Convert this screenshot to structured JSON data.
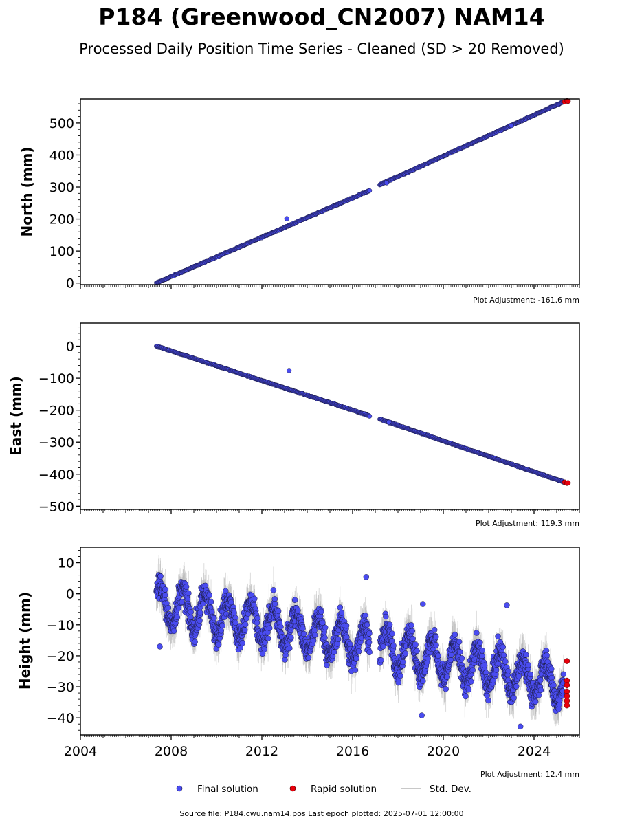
{
  "title": "P184 (Greenwood_CN2007) NAM14",
  "subtitle": "Processed Daily Position Time Series - Cleaned (SD > 20 Removed)",
  "footer": "Source file: P184.cwu.nam14.pos  Last epoch plotted: 2025-07-01 12:00:00",
  "legend": {
    "final_label": "Final solution",
    "rapid_label": "Rapid solution",
    "std_label": "Std. Dev."
  },
  "colors": {
    "final": "#4a4cf0",
    "rapid": "#e8000b",
    "edge": "#1a1a40",
    "std": "#b0b0b0"
  },
  "chart_data": [
    {
      "type": "scatter",
      "ylabel": "North (mm)",
      "adjustment": "Plot Adjustment: -161.6 mm",
      "xlim": [
        2004.0,
        2026.0
      ],
      "ylim": [
        -5,
        575
      ],
      "yticks": [
        0,
        100,
        200,
        300,
        400,
        500
      ],
      "ytick_labels": [
        "0",
        "100",
        "200",
        "300",
        "400",
        "500"
      ],
      "segments": [
        {
          "x0": 2007.35,
          "y0": 0,
          "x1": 2016.75,
          "y1": 289
        },
        {
          "x0": 2017.2,
          "y0": 307,
          "x1": 2025.3,
          "y1": 566
        }
      ],
      "outliers": [
        {
          "x": 2013.1,
          "y": 201
        },
        {
          "x": 2017.5,
          "y": 313
        },
        {
          "x": 2023.0,
          "y": 492
        }
      ],
      "rapid": [
        {
          "x": 2025.35,
          "y": 566
        },
        {
          "x": 2025.45,
          "y": 569
        },
        {
          "x": 2025.5,
          "y": 568
        }
      ]
    },
    {
      "type": "scatter",
      "ylabel": "East (mm)",
      "adjustment": "Plot Adjustment: 119.3 mm",
      "xlim": [
        2004.0,
        2026.0
      ],
      "ylim": [
        -510,
        72
      ],
      "yticks": [
        0,
        -100,
        -200,
        -300,
        -400,
        -500
      ],
      "ytick_labels": [
        "0",
        "−100",
        "−200",
        "−300",
        "−400",
        "−500"
      ],
      "segments": [
        {
          "x0": 2007.35,
          "y0": 0,
          "x1": 2016.75,
          "y1": -217
        },
        {
          "x0": 2017.2,
          "y0": -228,
          "x1": 2025.3,
          "y1": -424
        }
      ],
      "outliers": [
        {
          "x": 2013.2,
          "y": -76
        },
        {
          "x": 2017.6,
          "y": -238
        }
      ],
      "rapid": [
        {
          "x": 2025.35,
          "y": -425
        },
        {
          "x": 2025.45,
          "y": -428
        },
        {
          "x": 2025.5,
          "y": -427
        }
      ]
    },
    {
      "type": "scatter",
      "ylabel": "Height (mm)",
      "adjustment": "Plot Adjustment: 12.4 mm",
      "xlim": [
        2004.0,
        2026.0
      ],
      "ylim": [
        -45.5,
        15
      ],
      "yticks": [
        10,
        0,
        -10,
        -20,
        -30,
        -40
      ],
      "ytick_labels": [
        "10",
        "0",
        "−10",
        "−20",
        "−30",
        "−40"
      ],
      "xticks": [
        2004,
        2008,
        2012,
        2016,
        2020,
        2024
      ],
      "xtick_labels": [
        "2004",
        "2008",
        "2012",
        "2016",
        "2020",
        "2024"
      ],
      "trend": {
        "x0": 2007.35,
        "y0": -3,
        "x1": 2025.3,
        "y1": -29,
        "amplitude": 6,
        "noise": 4
      },
      "gap": [
        2016.75,
        2017.2
      ],
      "outliers": [
        {
          "x": 2016.6,
          "y": 5.4
        },
        {
          "x": 2019.1,
          "y": -3.3
        },
        {
          "x": 2022.8,
          "y": -3.7
        },
        {
          "x": 2019.05,
          "y": -39.2
        },
        {
          "x": 2023.4,
          "y": -42.8
        },
        {
          "x": 2007.5,
          "y": -17
        }
      ],
      "rapid": [
        {
          "x": 2025.45,
          "y": -21.7
        },
        {
          "x": 2025.45,
          "y": -28
        },
        {
          "x": 2025.45,
          "y": -29.5
        },
        {
          "x": 2025.45,
          "y": -31.5
        },
        {
          "x": 2025.45,
          "y": -33
        },
        {
          "x": 2025.45,
          "y": -34.5
        },
        {
          "x": 2025.45,
          "y": -36
        }
      ]
    }
  ]
}
